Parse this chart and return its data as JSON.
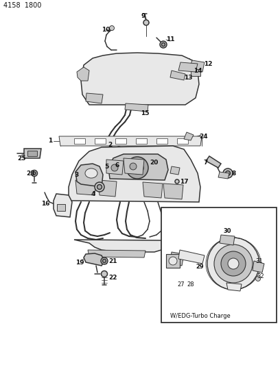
{
  "title": "4158  1800",
  "bg_color": "#ffffff",
  "line_color": "#333333",
  "text_color": "#111111",
  "bold_color": "#000000",
  "inset_label": "W/EDG-Turbo Charge",
  "figsize": [
    4.08,
    5.33
  ],
  "dpi": 100,
  "font_size_title": 7,
  "font_size_parts": 6.5,
  "font_size_inset_label": 6.0,
  "lw_main": 1.1,
  "lw_thin": 0.65,
  "lw_thick": 1.5,
  "gray_light": "#e8e8e8",
  "gray_mid": "#c8c8c8",
  "gray_dark": "#aaaaaa",
  "white": "#ffffff"
}
